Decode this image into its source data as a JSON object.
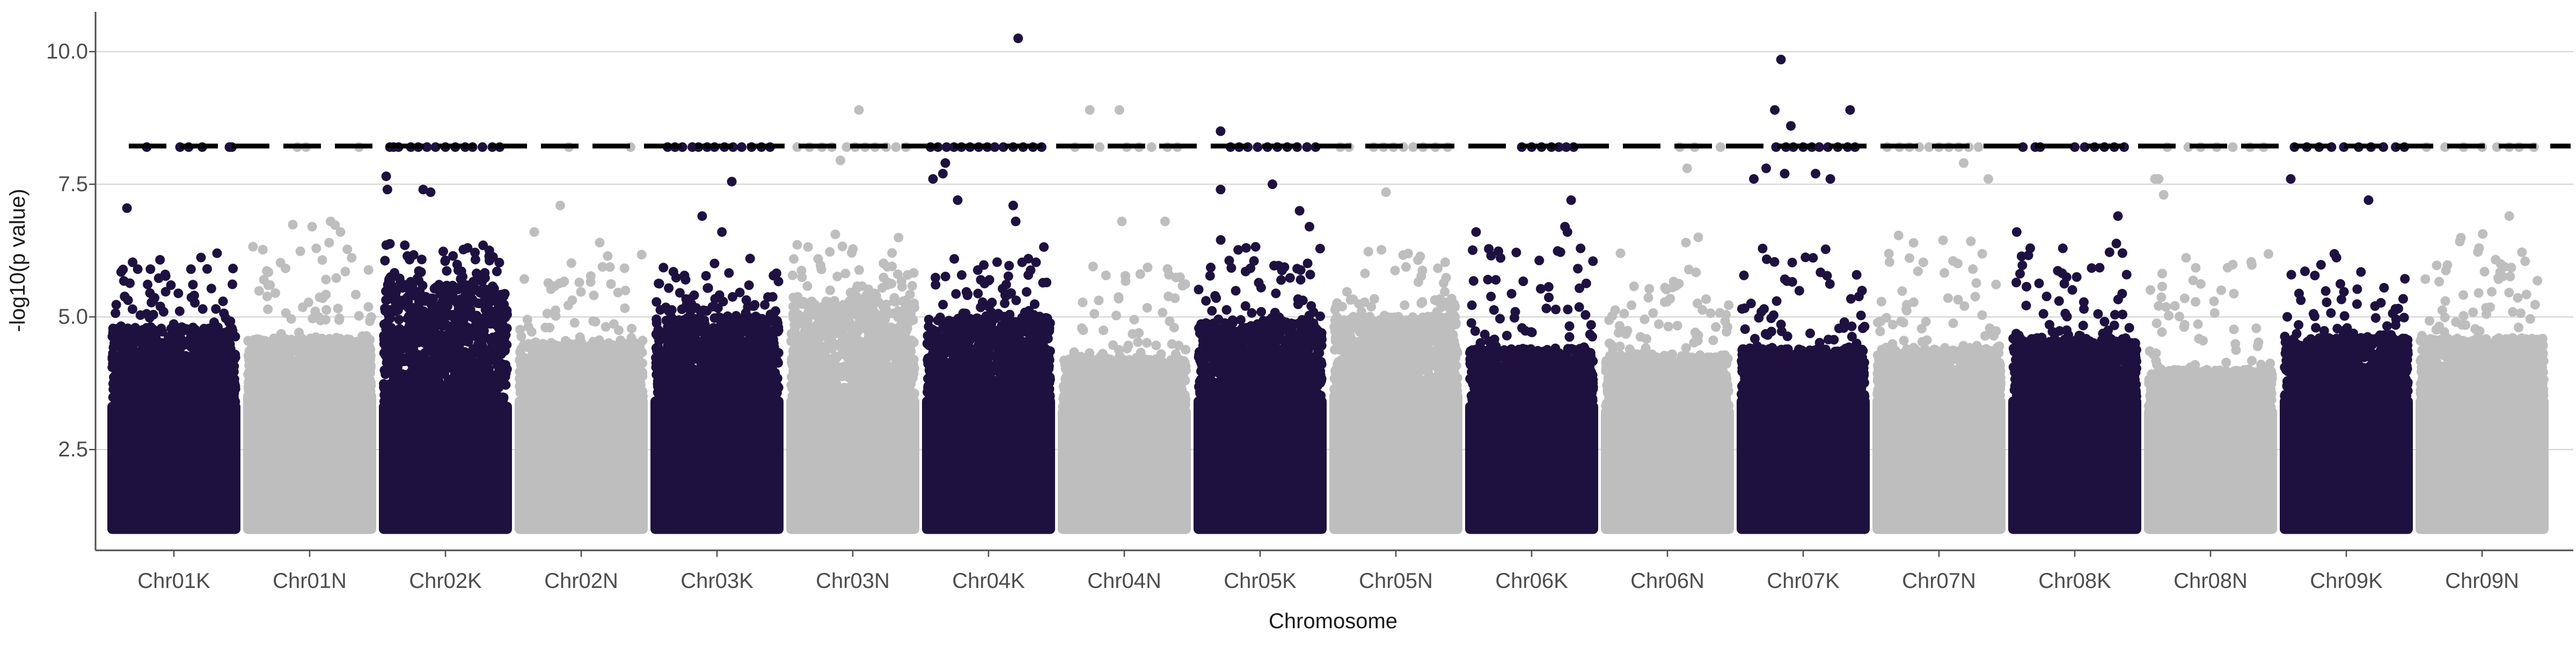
{
  "chart_data": {
    "type": "scatter",
    "title": "",
    "xlabel": "Chromosome",
    "ylabel": "-log10(p value)",
    "ylim": [
      0.6,
      10.75
    ],
    "yticks": [
      2.5,
      5.0,
      7.5,
      10.0
    ],
    "ytick_labels": [
      "2.5",
      "5.0",
      "7.5",
      "10.0"
    ],
    "threshold": 8.22,
    "threshold_style": "dashed",
    "grid": "horizontal major",
    "legend": "none",
    "colors": {
      "K": "#1e1140",
      "N": "#bebebe",
      "threshold": "#000000",
      "grid": "#d9d9d9",
      "axis": "#4d4d4d"
    },
    "categories": [
      "Chr01K",
      "Chr01N",
      "Chr02K",
      "Chr02N",
      "Chr03K",
      "Chr03N",
      "Chr04K",
      "Chr04N",
      "Chr05K",
      "Chr05N",
      "Chr06K",
      "Chr06N",
      "Chr07K",
      "Chr07N",
      "Chr08K",
      "Chr08N",
      "Chr09K",
      "Chr09N"
    ],
    "series": [
      {
        "category": "Chr01K",
        "color_key": "K",
        "bulk_max": 3.4,
        "fill_top": 4.8,
        "upper_max": 6.2,
        "x": [
          0.12,
          0.28,
          0.55,
          0.62,
          0.73,
          0.95,
          0.97,
          0.31,
          0.85,
          0.43
        ],
        "y": [
          7.05,
          8.2,
          8.2,
          8.2,
          8.2,
          8.2,
          8.2,
          5.9,
          6.2,
          5.8
        ]
      },
      {
        "category": "Chr01N",
        "color_key": "N",
        "bulk_max": 3.6,
        "fill_top": 4.6,
        "upper_max": 6.8,
        "x": [
          0.18,
          0.4,
          0.47,
          0.52,
          0.67,
          0.9,
          0.75
        ],
        "y": [
          5.6,
          8.2,
          8.2,
          6.7,
          6.8,
          8.2,
          6.6
        ]
      },
      {
        "category": "Chr02K",
        "color_key": "K",
        "bulk_max": 3.4,
        "fill_top": 5.6,
        "upper_max": 6.4,
        "x": [
          0.02,
          0.03,
          0.05,
          0.08,
          0.12,
          0.22,
          0.28,
          0.35,
          0.42,
          0.5,
          0.58,
          0.66,
          0.72,
          0.8,
          0.88,
          0.94,
          0.32,
          0.38,
          0.68
        ],
        "y": [
          7.65,
          7.4,
          8.2,
          8.2,
          8.2,
          8.2,
          8.2,
          8.2,
          8.2,
          8.2,
          8.2,
          8.2,
          8.2,
          8.2,
          8.2,
          8.2,
          7.4,
          7.35,
          6.3
        ]
      },
      {
        "category": "Chr02N",
        "color_key": "N",
        "bulk_max": 3.5,
        "fill_top": 4.5,
        "upper_max": 6.2,
        "x": [
          0.12,
          0.33,
          0.4,
          0.9,
          0.65
        ],
        "y": [
          6.6,
          7.1,
          8.2,
          8.2,
          6.4
        ]
      },
      {
        "category": "Chr03K",
        "color_key": "K",
        "bulk_max": 3.5,
        "fill_top": 5.0,
        "upper_max": 6.1,
        "x": [
          0.1,
          0.16,
          0.22,
          0.3,
          0.35,
          0.42,
          0.48,
          0.56,
          0.63,
          0.7,
          0.78,
          0.86,
          0.93,
          0.38,
          0.62,
          0.54
        ],
        "y": [
          8.2,
          8.2,
          8.2,
          8.2,
          8.2,
          8.2,
          8.2,
          8.2,
          8.2,
          8.2,
          8.2,
          8.2,
          8.2,
          6.9,
          7.55,
          6.6
        ]
      },
      {
        "category": "Chr03N",
        "color_key": "N",
        "bulk_max": 3.5,
        "fill_top": 5.3,
        "upper_max": 6.6,
        "x": [
          0.05,
          0.15,
          0.25,
          0.33,
          0.45,
          0.52,
          0.6,
          0.68,
          0.77,
          0.85,
          0.93,
          0.55,
          0.4
        ],
        "y": [
          8.2,
          8.2,
          8.2,
          8.2,
          8.2,
          8.2,
          8.2,
          8.2,
          8.2,
          8.2,
          8.2,
          8.9,
          7.95
        ]
      },
      {
        "category": "Chr04K",
        "color_key": "K",
        "bulk_max": 3.5,
        "fill_top": 5.0,
        "upper_max": 6.4,
        "x": [
          0.03,
          0.09,
          0.16,
          0.22,
          0.28,
          0.35,
          0.42,
          0.49,
          0.55,
          0.62,
          0.7,
          0.78,
          0.86,
          0.93,
          0.74,
          0.15,
          0.05,
          0.13,
          0.7,
          0.72,
          0.25
        ],
        "y": [
          8.2,
          8.2,
          8.2,
          8.2,
          8.2,
          8.2,
          8.2,
          8.2,
          8.2,
          8.2,
          8.2,
          8.2,
          8.2,
          8.2,
          10.25,
          7.9,
          7.6,
          7.7,
          7.1,
          6.8,
          7.2
        ]
      },
      {
        "category": "Chr04N",
        "color_key": "N",
        "bulk_max": 3.3,
        "fill_top": 4.2,
        "upper_max": 6.0,
        "x": [
          0.22,
          0.46,
          0.1,
          0.3,
          0.52,
          0.62,
          0.72,
          0.85,
          0.93,
          0.48,
          0.83
        ],
        "y": [
          8.9,
          8.9,
          8.2,
          8.2,
          8.2,
          8.2,
          8.2,
          8.2,
          8.2,
          6.8,
          6.8
        ]
      },
      {
        "category": "Chr05K",
        "color_key": "K",
        "bulk_max": 3.5,
        "fill_top": 4.9,
        "upper_max": 6.5,
        "x": [
          0.18,
          0.26,
          0.33,
          0.4,
          0.48,
          0.56,
          0.64,
          0.72,
          0.8,
          0.88,
          0.95,
          0.18,
          0.6,
          0.82,
          0.9
        ],
        "y": [
          8.5,
          8.2,
          8.2,
          8.2,
          8.2,
          8.2,
          8.2,
          8.2,
          8.2,
          8.2,
          8.2,
          7.4,
          7.5,
          7.0,
          6.7
        ]
      },
      {
        "category": "Chr05N",
        "color_key": "N",
        "bulk_max": 3.6,
        "fill_top": 5.0,
        "upper_max": 6.3,
        "x": [
          0.05,
          0.12,
          0.32,
          0.4,
          0.48,
          0.56,
          0.64,
          0.72,
          0.82,
          0.92,
          0.42
        ],
        "y": [
          8.2,
          8.2,
          8.2,
          8.2,
          8.2,
          8.2,
          8.2,
          8.2,
          8.2,
          8.2,
          7.35
        ]
      },
      {
        "category": "Chr06K",
        "color_key": "K",
        "bulk_max": 3.4,
        "fill_top": 4.4,
        "upper_max": 6.3,
        "x": [
          0.05,
          0.42,
          0.5,
          0.58,
          0.66,
          0.72,
          0.78,
          0.84,
          0.77,
          0.79,
          0.82
        ],
        "y": [
          6.6,
          8.2,
          8.2,
          8.2,
          8.2,
          8.2,
          8.2,
          8.2,
          6.7,
          6.6,
          7.2
        ]
      },
      {
        "category": "Chr06N",
        "color_key": "N",
        "bulk_max": 3.3,
        "fill_top": 4.3,
        "upper_max": 6.0,
        "x": [
          0.12,
          0.6,
          0.66,
          0.72,
          0.93,
          0.65,
          0.75
        ],
        "y": [
          6.2,
          8.2,
          7.8,
          8.2,
          8.2,
          6.4,
          6.5
        ]
      },
      {
        "category": "Chr07K",
        "color_key": "K",
        "bulk_max": 3.5,
        "fill_top": 4.4,
        "upper_max": 6.3,
        "x": [
          0.28,
          0.36,
          0.42,
          0.5,
          0.57,
          0.63,
          0.7,
          0.78,
          0.86,
          0.92,
          0.32,
          0.4,
          0.88,
          0.27,
          0.35,
          0.72,
          0.1,
          0.2,
          0.6
        ],
        "y": [
          8.2,
          8.2,
          8.2,
          8.2,
          8.2,
          8.2,
          8.2,
          8.2,
          8.2,
          8.2,
          9.85,
          8.6,
          8.9,
          8.9,
          7.7,
          7.6,
          7.6,
          7.8,
          7.7
        ]
      },
      {
        "category": "Chr07N",
        "color_key": "N",
        "bulk_max": 3.5,
        "fill_top": 4.4,
        "upper_max": 6.6,
        "x": [
          0.08,
          0.18,
          0.26,
          0.34,
          0.42,
          0.5,
          0.58,
          0.66,
          0.74,
          0.82,
          0.7,
          0.9
        ],
        "y": [
          8.2,
          8.2,
          8.2,
          8.2,
          8.2,
          8.2,
          8.2,
          8.2,
          8.2,
          8.2,
          7.9,
          7.6
        ]
      },
      {
        "category": "Chr08K",
        "color_key": "K",
        "bulk_max": 3.5,
        "fill_top": 4.6,
        "upper_max": 6.4,
        "x": [
          0.08,
          0.18,
          0.22,
          0.5,
          0.58,
          0.66,
          0.74,
          0.82,
          0.9,
          0.03,
          0.85
        ],
        "y": [
          8.2,
          8.2,
          8.2,
          8.2,
          8.2,
          8.2,
          8.2,
          8.2,
          8.2,
          6.6,
          6.9
        ]
      },
      {
        "category": "Chr08N",
        "color_key": "N",
        "bulk_max": 3.3,
        "fill_top": 4.0,
        "upper_max": 6.2,
        "x": [
          0.05,
          0.15,
          0.32,
          0.42,
          0.55,
          0.68,
          0.82,
          0.93,
          0.08,
          0.12
        ],
        "y": [
          7.6,
          8.2,
          8.2,
          8.2,
          8.2,
          8.2,
          8.2,
          8.2,
          7.6,
          7.3
        ]
      },
      {
        "category": "Chr09K",
        "color_key": "K",
        "bulk_max": 3.5,
        "fill_top": 4.6,
        "upper_max": 6.2,
        "x": [
          0.08,
          0.18,
          0.28,
          0.38,
          0.48,
          0.6,
          0.7,
          0.8,
          0.9,
          0.97,
          0.05,
          0.68
        ],
        "y": [
          8.2,
          8.2,
          8.2,
          8.2,
          8.2,
          8.2,
          8.2,
          8.2,
          8.2,
          8.2,
          7.6,
          7.2
        ]
      },
      {
        "category": "Chr09N",
        "color_key": "N",
        "bulk_max": 3.5,
        "fill_top": 4.6,
        "upper_max": 6.6,
        "x": [
          0.05,
          0.2,
          0.35,
          0.5,
          0.62,
          0.72,
          0.8,
          0.92,
          0.72
        ],
        "y": [
          8.2,
          8.2,
          8.2,
          8.2,
          8.2,
          8.2,
          8.2,
          8.2,
          6.9
        ]
      }
    ]
  }
}
